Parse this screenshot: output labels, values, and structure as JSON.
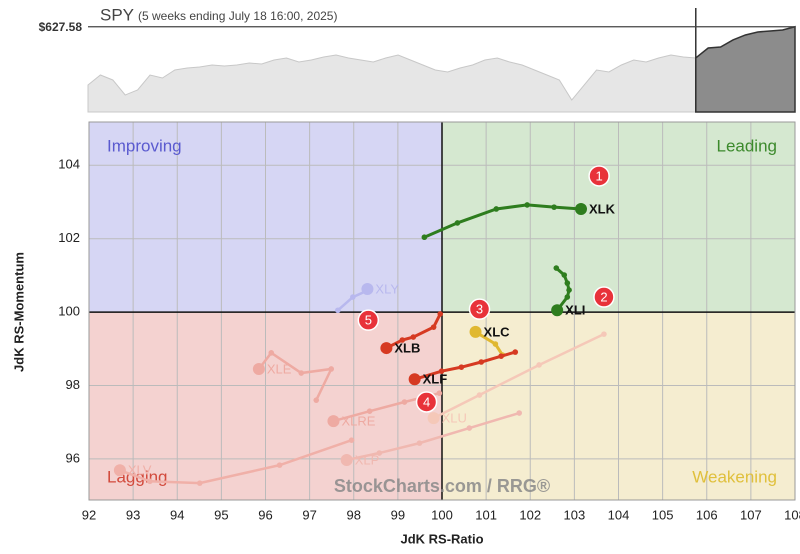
{
  "chart_data": {
    "type": "rrg",
    "spy": {
      "title": "SPY",
      "subtitle": "(5 weeks ending July 18 16:00, 2025)",
      "price_label": {
        "value": 627.58,
        "label": "$627.58"
      },
      "ylim": [
        612,
        631
      ],
      "values": [
        616.93,
        618.76,
        617.85,
        615.11,
        616.02,
        618.76,
        618.21,
        619.67,
        620.04,
        620.22,
        620.59,
        620.4,
        620.59,
        620.95,
        620.77,
        621.5,
        621.87,
        621.13,
        621.5,
        622.05,
        622.41,
        621.87,
        621.5,
        621.13,
        621.87,
        622.41,
        621.5,
        620.59,
        619.67,
        619.31,
        620.04,
        620.59,
        621.5,
        621.87,
        621.13,
        620.59,
        619.67,
        618.76,
        617.85,
        614.19,
        616.93,
        619.67,
        619.31,
        620.59,
        621.5,
        621.13,
        621.87,
        622.41,
        622.05,
        621.87
      ],
      "period_values": [
        623.69,
        623.88,
        625.16,
        626.07,
        626.62,
        626.8,
        626.99,
        627.58
      ],
      "color": "#c8c8c8",
      "period_color": "#8c8c8c"
    },
    "x_label": "JdK RS-Ratio",
    "y_label": "JdK RS-Momentum",
    "xlim": [
      92,
      108
    ],
    "ylim": [
      94.88,
      105.18
    ],
    "xticks": [
      92,
      93,
      94,
      95,
      96,
      97,
      98,
      99,
      100,
      101,
      102,
      103,
      104,
      105,
      106,
      107,
      108
    ],
    "yticks": [
      96,
      98,
      100,
      102,
      104
    ],
    "grid": true,
    "quadrants": [
      {
        "label": "Improving",
        "color": "#5a5acf",
        "fill": "#d6d6f4"
      },
      {
        "label": "Leading",
        "color": "#3c8a2c",
        "fill": "#d5e8d0"
      },
      {
        "label": "Lagging",
        "color": "#d24a3c",
        "fill": "#f4d2d0"
      },
      {
        "label": "Weakening",
        "color": "#e0c03c",
        "fill": "#f5edd0"
      }
    ],
    "watermark": "StockCharts.com / RRG®",
    "series": [
      {
        "name": "XLY",
        "color": "#b8b8ee",
        "faded": true,
        "x": [
          97.64,
          97.98,
          98.28,
          98.31
        ],
        "y": [
          100.05,
          100.41,
          100.57,
          100.63
        ]
      },
      {
        "name": "XLE",
        "color": "#eeaaa2",
        "faded": true,
        "x": [
          97.15,
          97.49,
          96.81,
          96.13,
          95.85
        ],
        "y": [
          97.6,
          98.45,
          98.34,
          98.89,
          98.45
        ]
      },
      {
        "name": "XLRE",
        "color": "#eeaaa2",
        "faded": true,
        "x": [
          99.94,
          99.15,
          98.36,
          97.54
        ],
        "y": [
          97.79,
          97.55,
          97.3,
          97.03
        ]
      },
      {
        "name": "XLP",
        "color": "#f0b8b0",
        "faded": true,
        "x": [
          101.75,
          100.62,
          99.49,
          98.58,
          97.84
        ],
        "y": [
          97.25,
          96.84,
          96.43,
          96.16,
          95.97
        ]
      },
      {
        "name": "XLU",
        "color": "#f5c8b8",
        "faded": true,
        "x": [
          103.67,
          102.2,
          100.85,
          99.81
        ],
        "y": [
          99.4,
          98.56,
          97.74,
          97.11
        ]
      },
      {
        "name": "XLV",
        "color": "#f0b0a8",
        "faded": true,
        "x": [
          97.95,
          96.32,
          94.51,
          93.38,
          92.7
        ],
        "y": [
          96.51,
          95.83,
          95.34,
          95.39,
          95.69
        ]
      },
      {
        "name": "XLK",
        "color": "#2e7d1e",
        "faded": false,
        "x": [
          99.6,
          100.35,
          101.23,
          101.93,
          102.54,
          103.15
        ],
        "y": [
          102.04,
          102.43,
          102.81,
          102.92,
          102.86,
          102.81
        ]
      },
      {
        "name": "XLI",
        "color": "#2e7d1e",
        "faded": false,
        "x": [
          102.59,
          102.77,
          102.84,
          102.88,
          102.84,
          102.61
        ],
        "y": [
          101.2,
          101.01,
          100.79,
          100.6,
          100.41,
          100.05
        ]
      },
      {
        "name": "XLC",
        "color": "#e0b830",
        "faded": false,
        "x": [
          101.37,
          101.21,
          100.76
        ],
        "y": [
          98.83,
          99.13,
          99.46
        ]
      },
      {
        "name": "XLF",
        "color": "#d63a22",
        "faded": false,
        "x": [
          101.66,
          101.34,
          100.89,
          100.44,
          99.99,
          99.38
        ],
        "y": [
          98.91,
          98.8,
          98.64,
          98.5,
          98.39,
          98.17
        ]
      },
      {
        "name": "XLB",
        "color": "#d63a22",
        "faded": false,
        "x": [
          99.96,
          99.81,
          99.35,
          99.1,
          98.74
        ],
        "y": [
          99.95,
          99.59,
          99.32,
          99.24,
          99.02
        ]
      }
    ],
    "annotations": [
      {
        "text": "1",
        "x": 103.56,
        "y": 103.71
      },
      {
        "text": "2",
        "x": 103.67,
        "y": 100.41
      },
      {
        "text": "3",
        "x": 100.85,
        "y": 100.08
      },
      {
        "text": "4",
        "x": 99.65,
        "y": 97.55
      },
      {
        "text": "5",
        "x": 98.33,
        "y": 99.78
      }
    ],
    "annotation_color": "#e8323a"
  }
}
